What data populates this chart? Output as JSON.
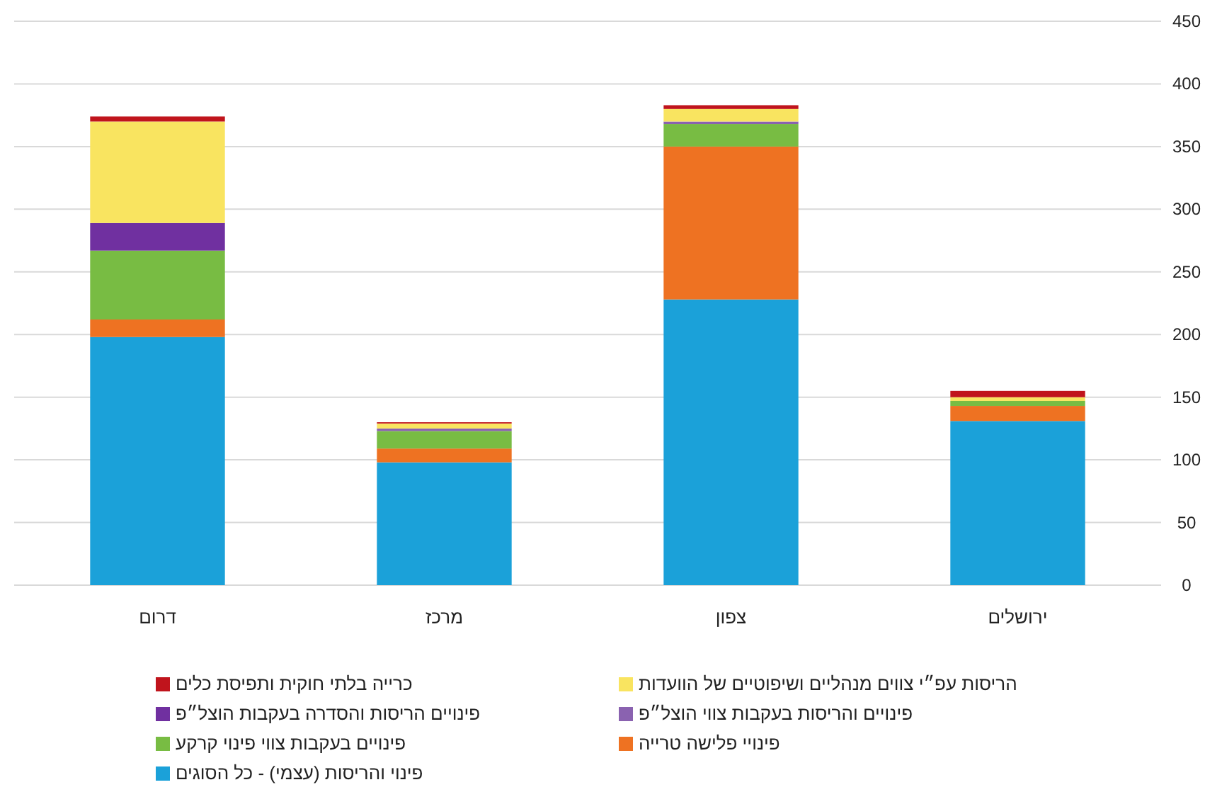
{
  "chart_data": {
    "type": "bar",
    "stacked": true,
    "categories": [
      "דרום",
      "מרכז",
      "צפון",
      "ירושלים"
    ],
    "ylim": [
      0,
      450
    ],
    "yticks": [
      0,
      50,
      100,
      150,
      200,
      250,
      300,
      350,
      400,
      450
    ],
    "grid": "y",
    "legend": "bottom",
    "series": [
      {
        "name": "פינוי והריסות (עצמי) - כל הסוגים",
        "color": "#1ba1d9",
        "values": [
          198,
          98,
          228,
          131
        ]
      },
      {
        "name": "פינויי פלישה טרייה",
        "color": "#ee7222",
        "values": [
          14,
          11,
          122,
          12
        ]
      },
      {
        "name": "פינויים בעקבות צווי פינוי קרקע",
        "color": "#78bc43",
        "values": [
          55,
          14,
          18,
          4
        ]
      },
      {
        "name": "פינויים והריסות בעקבות צווי הוצל״פ",
        "color": "#8a62b0",
        "values": [
          0,
          2,
          2,
          0
        ]
      },
      {
        "name": "פינויים הריסות והסדרה בעקבות הוצל״פ",
        "color": "#7030a0",
        "values": [
          22,
          0,
          0,
          0
        ]
      },
      {
        "name": "הריסות עפ״י צווים מנהליים ושיפוטיים של הוועדות",
        "color": "#f9e460",
        "values": [
          81,
          4,
          10,
          3
        ]
      },
      {
        "name": "כרייה בלתי חוקית ותפיסת כלים",
        "color": "#c0141c",
        "values": [
          4,
          1,
          3,
          5
        ]
      }
    ]
  }
}
